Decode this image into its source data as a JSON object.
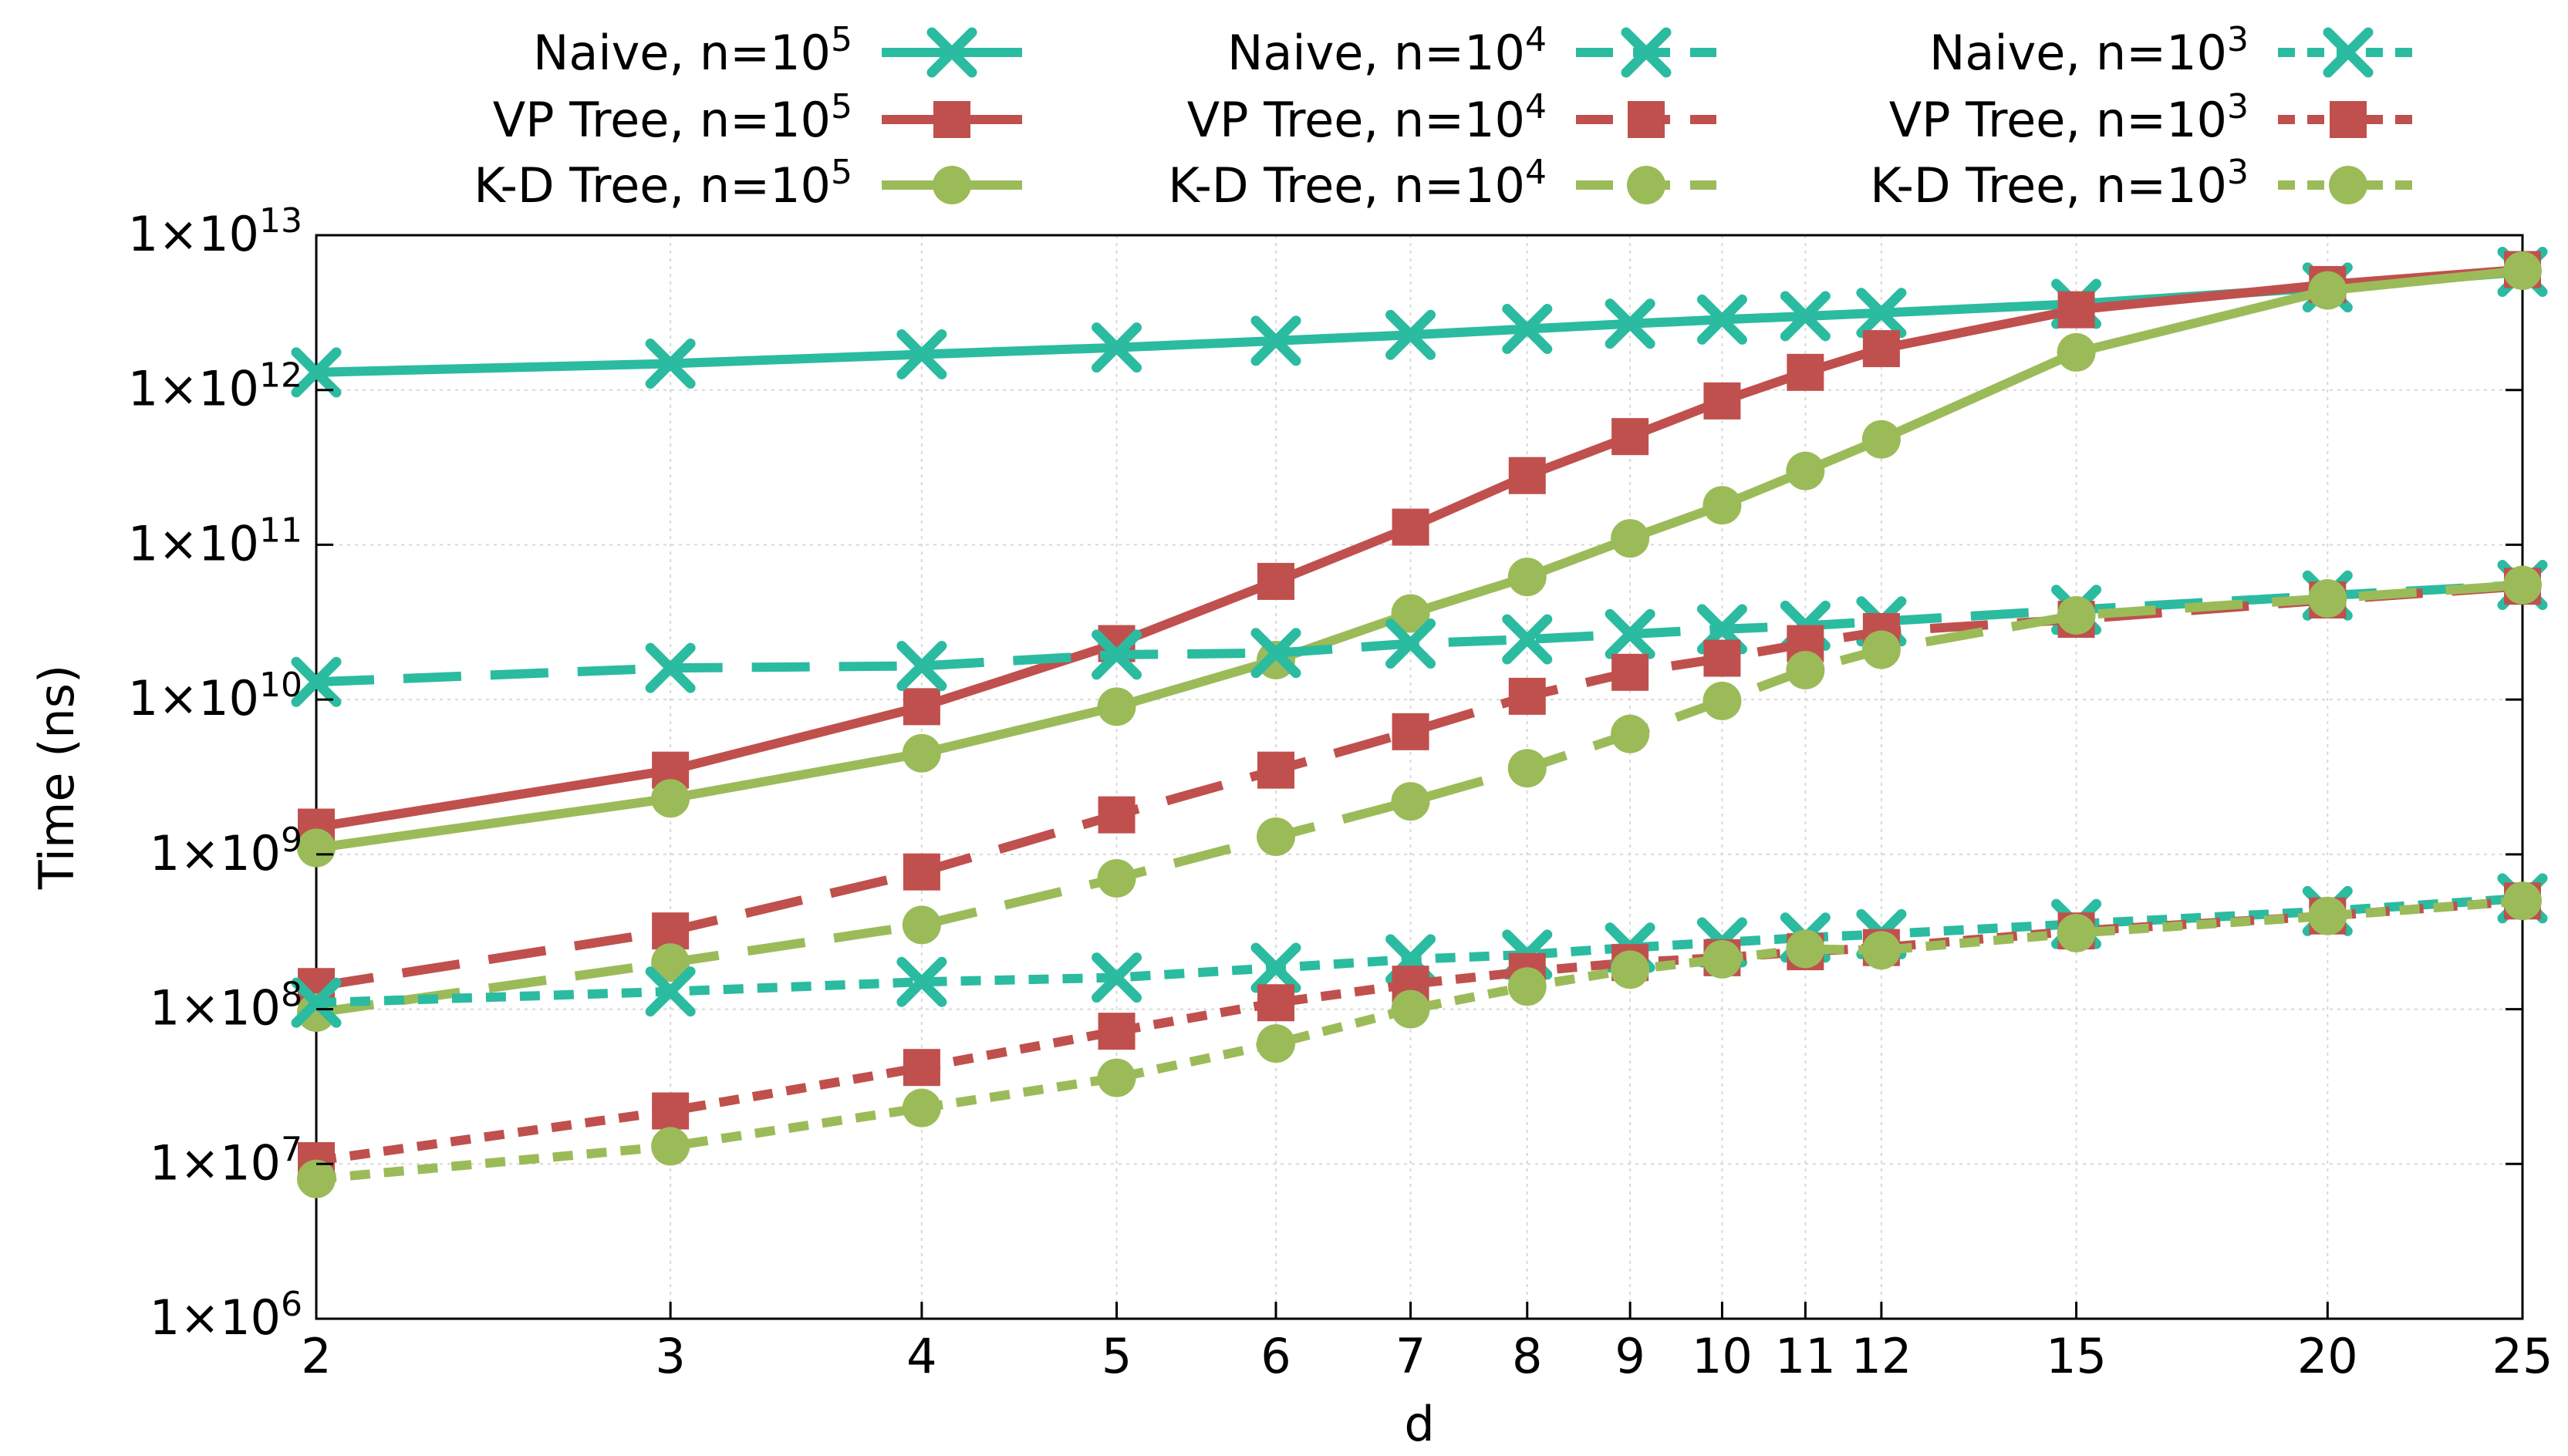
{
  "chart_data": {
    "type": "line",
    "title": "",
    "xlabel": "d",
    "ylabel": "Time (ns)",
    "x_scale": "log",
    "y_scale": "log",
    "xlim": [
      2,
      25
    ],
    "ylim": [
      1000000,
      10000000000000
    ],
    "grid": true,
    "legend_position": "top",
    "x": [
      2,
      3,
      4,
      5,
      6,
      7,
      8,
      9,
      10,
      11,
      12,
      15,
      20,
      25
    ],
    "x_tick_labels": [
      "2",
      "3",
      "4",
      "5",
      "6",
      "7",
      "8",
      "9",
      "10",
      "11",
      "12",
      "15",
      "20",
      "25"
    ],
    "y_ticks": [
      {
        "base": "1×10",
        "exp": "6",
        "value": 1000000
      },
      {
        "base": "1×10",
        "exp": "7",
        "value": 10000000
      },
      {
        "base": "1×10",
        "exp": "8",
        "value": 100000000
      },
      {
        "base": "1×10",
        "exp": "9",
        "value": 1000000000
      },
      {
        "base": "1×10",
        "exp": "10",
        "value": 10000000000
      },
      {
        "base": "1×10",
        "exp": "11",
        "value": 100000000000
      },
      {
        "base": "1×10",
        "exp": "12",
        "value": 1000000000000
      },
      {
        "base": "1×10",
        "exp": "13",
        "value": 10000000000000
      }
    ],
    "series": [
      {
        "name": "Naive, n=10",
        "exp": "5",
        "color": "#2bbba0",
        "marker": "x",
        "dash": "solid",
        "values": [
          1300000000000,
          1480000000000,
          1700000000000,
          1880000000000,
          2080000000000,
          2270000000000,
          2480000000000,
          2680000000000,
          2850000000000,
          3000000000000,
          3150000000000,
          3600000000000,
          4600000000000,
          5800000000000
        ]
      },
      {
        "name": "VP Tree, n=10",
        "exp": "5",
        "color": "#c0504d",
        "marker": "square",
        "dash": "solid",
        "values": [
          1500000000,
          3500000000,
          9000000000,
          23000000000,
          58000000000,
          130000000000,
          280000000000,
          500000000000,
          850000000000,
          1300000000000,
          1850000000000,
          3300000000000,
          4800000000000,
          6000000000000
        ]
      },
      {
        "name": "K-D Tree, n=10",
        "exp": "5",
        "color": "#9bbb59",
        "marker": "circle",
        "dash": "solid",
        "values": [
          1100000000,
          2300000000,
          4500000000,
          9000000000,
          18000000000,
          36000000000,
          62000000000,
          110000000000,
          180000000000,
          300000000000,
          480000000000,
          1750000000000,
          4400000000000,
          5900000000000
        ]
      },
      {
        "name": "Naive, n=10",
        "exp": "4",
        "color": "#2bbba0",
        "marker": "x",
        "dash": "dashed",
        "values": [
          13000000000,
          16000000000,
          16500000000,
          19500000000,
          20000000000,
          23000000000,
          24500000000,
          26500000000,
          28500000000,
          30000000000,
          32000000000,
          38000000000,
          47000000000,
          55000000000
        ]
      },
      {
        "name": "VP Tree, n=10",
        "exp": "4",
        "color": "#c0504d",
        "marker": "square",
        "dash": "dashed",
        "values": [
          140000000,
          320000000,
          770000000,
          1800000000,
          3500000000,
          6200000000,
          10500000000,
          15000000000,
          18500000000,
          23000000000,
          27500000000,
          33000000000,
          44000000000,
          54000000000
        ]
      },
      {
        "name": "K-D Tree, n=10",
        "exp": "4",
        "color": "#9bbb59",
        "marker": "circle",
        "dash": "dashed",
        "values": [
          95000000,
          200000000,
          350000000,
          700000000,
          1300000000,
          2200000000,
          3600000000,
          6000000000,
          9800000000,
          15500000000,
          21000000000,
          35000000000,
          45000000000,
          55000000000
        ]
      },
      {
        "name": "Naive, n=10",
        "exp": "3",
        "color": "#2bbba0",
        "marker": "x",
        "dash": "dotted",
        "values": [
          110000000,
          130000000,
          150000000,
          160000000,
          185000000,
          210000000,
          225000000,
          250000000,
          270000000,
          290000000,
          305000000,
          355000000,
          430000000,
          520000000
        ]
      },
      {
        "name": "VP Tree, n=10",
        "exp": "3",
        "color": "#c0504d",
        "marker": "square",
        "dash": "dotted",
        "values": [
          10500000,
          22000000,
          42000000,
          72000000,
          110000000,
          145000000,
          175000000,
          200000000,
          215000000,
          235000000,
          250000000,
          320000000,
          400000000,
          500000000
        ]
      },
      {
        "name": "K-D Tree, n=10",
        "exp": "3",
        "color": "#9bbb59",
        "marker": "circle",
        "dash": "dotted",
        "values": [
          8000000,
          13000000,
          23000000,
          36000000,
          60000000,
          100000000,
          140000000,
          180000000,
          210000000,
          245000000,
          240000000,
          310000000,
          400000000,
          500000000
        ]
      }
    ]
  }
}
